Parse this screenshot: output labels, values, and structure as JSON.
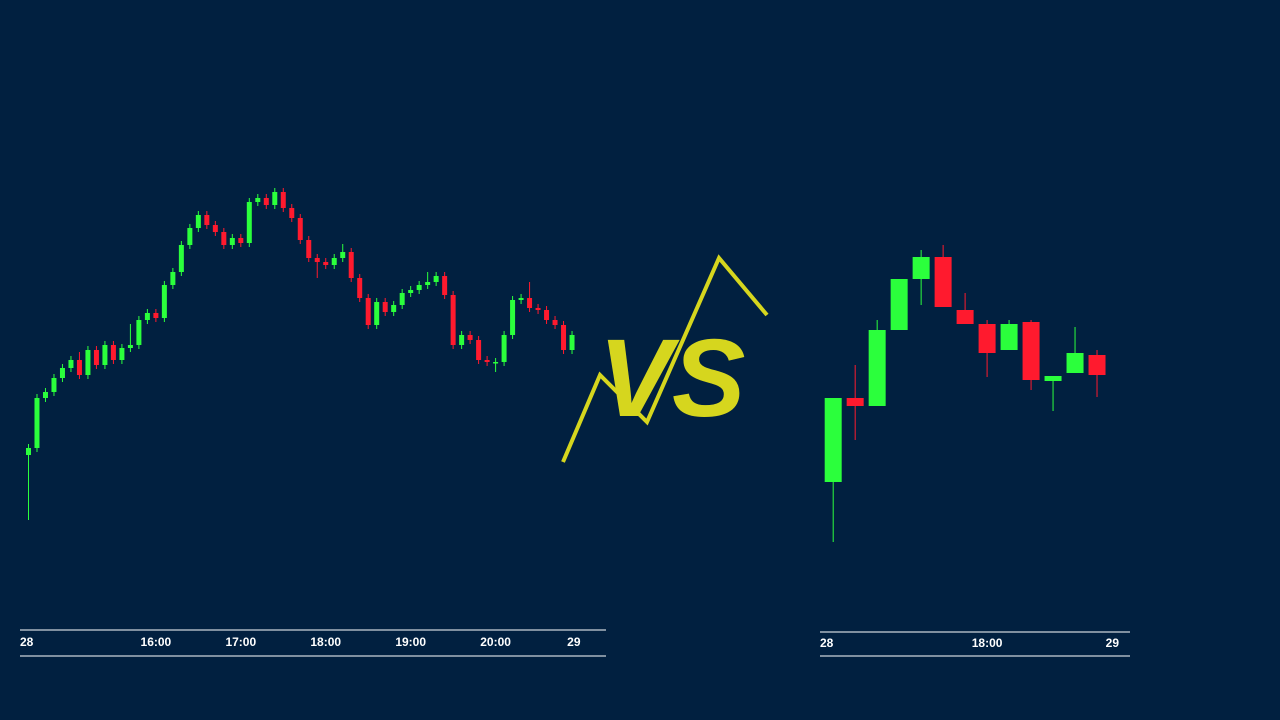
{
  "overlay_text": "VS",
  "chart_data": [
    {
      "type": "candlestick",
      "up_color": "#2bff3c",
      "down_color": "#ff1a2e",
      "xlim": [
        -1,
        68
      ],
      "ylim": [
        0,
        720
      ],
      "xticks": [
        {
          "value": 0,
          "label": "28"
        },
        {
          "value": 15,
          "label": "16:00"
        },
        {
          "value": 25,
          "label": "17:00"
        },
        {
          "value": 35,
          "label": "18:00"
        },
        {
          "value": 45,
          "label": "19:00"
        },
        {
          "value": 55,
          "label": "20:00"
        },
        {
          "value": 65,
          "label": "29"
        }
      ],
      "open": [
        265,
        272,
        322,
        328,
        342,
        352,
        360,
        345,
        370,
        355,
        375,
        360,
        372,
        375,
        400,
        407,
        402,
        435,
        448,
        475,
        492,
        505,
        495,
        488,
        475,
        482,
        477,
        518,
        522,
        515,
        528,
        512,
        502,
        480,
        462,
        458,
        455,
        462,
        468,
        442,
        422,
        395,
        418,
        408,
        415,
        427,
        430,
        435,
        438,
        444,
        425,
        375,
        385,
        380,
        360,
        358,
        358,
        385,
        420,
        422,
        412,
        410,
        400,
        395,
        370
      ],
      "high": [
        276,
        326,
        332,
        346,
        356,
        364,
        368,
        374,
        374,
        379,
        379,
        376,
        396,
        404,
        411,
        411,
        439,
        452,
        479,
        496,
        509,
        509,
        499,
        492,
        486,
        486,
        522,
        526,
        526,
        532,
        532,
        516,
        506,
        484,
        466,
        462,
        466,
        476,
        472,
        446,
        426,
        422,
        422,
        419,
        431,
        434,
        439,
        448,
        448,
        448,
        429,
        389,
        389,
        384,
        364,
        362,
        389,
        424,
        426,
        438,
        416,
        414,
        404,
        399,
        389
      ],
      "low": [
        200,
        268,
        318,
        324,
        338,
        348,
        341,
        341,
        351,
        351,
        356,
        356,
        368,
        371,
        396,
        398,
        398,
        431,
        444,
        471,
        488,
        491,
        484,
        471,
        471,
        473,
        473,
        514,
        511,
        511,
        508,
        498,
        476,
        458,
        442,
        451,
        451,
        458,
        438,
        418,
        391,
        391,
        404,
        404,
        411,
        423,
        426,
        431,
        434,
        421,
        371,
        371,
        376,
        356,
        354,
        348,
        354,
        381,
        416,
        408,
        406,
        396,
        391,
        366,
        366
      ],
      "close": [
        272,
        322,
        328,
        342,
        352,
        360,
        345,
        370,
        355,
        375,
        360,
        372,
        375,
        400,
        407,
        402,
        435,
        448,
        475,
        492,
        505,
        495,
        488,
        475,
        482,
        477,
        518,
        522,
        515,
        528,
        512,
        502,
        480,
        462,
        458,
        455,
        462,
        468,
        442,
        422,
        395,
        418,
        408,
        415,
        427,
        430,
        435,
        438,
        444,
        425,
        375,
        385,
        380,
        360,
        358,
        358,
        385,
        420,
        422,
        412,
        410,
        400,
        395,
        370,
        385
      ]
    },
    {
      "type": "candlestick",
      "up_color": "#2bff3c",
      "down_color": "#ff1a2e",
      "xlim": [
        -0.6,
        13.5
      ],
      "ylim": [
        0,
        720
      ],
      "xticks": [
        {
          "value": 0,
          "label": "28"
        },
        {
          "value": 7,
          "label": "18:00"
        },
        {
          "value": 13,
          "label": "29"
        }
      ],
      "open": [
        238,
        322,
        314,
        390,
        441,
        463,
        410,
        396,
        370,
        398,
        339,
        347,
        365
      ],
      "high": [
        322,
        355,
        400,
        441,
        470,
        475,
        427,
        400,
        400,
        400,
        344,
        393,
        370
      ],
      "low": [
        178,
        280,
        314,
        390,
        415,
        413,
        396,
        343,
        370,
        330,
        309,
        347,
        323
      ],
      "close": [
        322,
        314,
        390,
        441,
        463,
        413,
        396,
        367,
        396,
        340,
        344,
        367,
        345
      ]
    }
  ]
}
